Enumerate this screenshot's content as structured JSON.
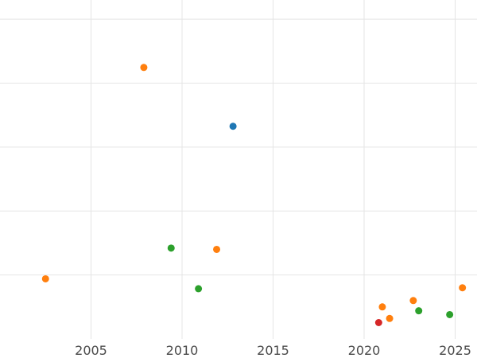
{
  "chart_data": {
    "type": "scatter",
    "title": "",
    "xlabel": "",
    "ylabel": "",
    "xlim": [
      2000.0,
      2026.2
    ],
    "ylim": [
      0,
      106
    ],
    "grid": true,
    "legend": "none",
    "x_ticks": [
      "2005",
      "2010",
      "2015",
      "2020",
      "2025"
    ],
    "x_tick_values": [
      2005,
      2010,
      2015,
      2020,
      2025
    ],
    "y_grid_values": [
      20,
      40,
      60,
      80,
      100
    ],
    "series": [
      {
        "color": "#1f77b4",
        "points": [
          {
            "x": 2012.8,
            "y": 66.5
          }
        ]
      },
      {
        "color": "#ff7f0e",
        "points": [
          {
            "x": 2002.5,
            "y": 18.8
          },
          {
            "x": 2007.9,
            "y": 84.9
          },
          {
            "x": 2011.9,
            "y": 28.0
          },
          {
            "x": 2021.0,
            "y": 10.0
          },
          {
            "x": 2021.4,
            "y": 6.4
          },
          {
            "x": 2022.7,
            "y": 12.0
          },
          {
            "x": 2025.4,
            "y": 16.0
          }
        ]
      },
      {
        "color": "#2ca02c",
        "points": [
          {
            "x": 2009.4,
            "y": 28.4
          },
          {
            "x": 2010.9,
            "y": 15.7
          },
          {
            "x": 2023.0,
            "y": 8.8
          },
          {
            "x": 2024.7,
            "y": 7.6
          }
        ]
      },
      {
        "color": "#d62728",
        "points": [
          {
            "x": 2020.8,
            "y": 5.1
          }
        ]
      }
    ]
  }
}
